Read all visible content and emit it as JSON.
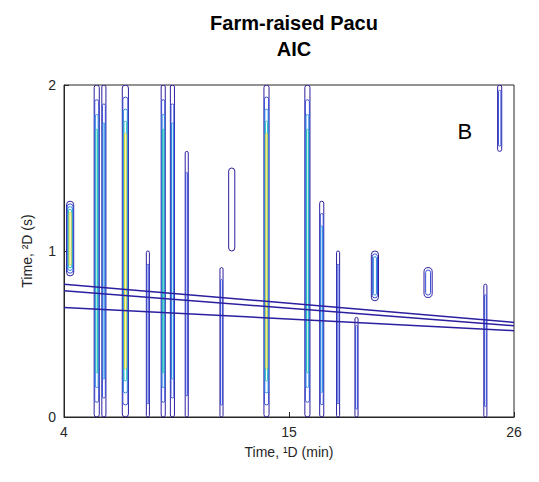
{
  "chart_data": {
    "type": "contour",
    "title": "Farm-raised Pacu",
    "subtitle": "AIC",
    "x_label": "Time, ¹D (min)",
    "y_label": "Time, ²D (s)",
    "annotations": [
      {
        "text": "B",
        "x": 23.6,
        "y": 1.72
      }
    ],
    "xlim": [
      4,
      26
    ],
    "xticks": [
      4,
      15,
      26
    ],
    "ylim": [
      0,
      2
    ],
    "yticks": [
      0,
      1,
      2
    ],
    "grid": false,
    "colors": [
      "#2b1fa0",
      "#3a4fd8",
      "#2f8fe0",
      "#2cc0b8",
      "#e8d83a"
    ],
    "peaks": [
      {
        "x": 4.3,
        "y": [
          0.85,
          1.3
        ],
        "width": 0.35,
        "level": 5
      },
      {
        "x": 5.6,
        "y": [
          0,
          2
        ],
        "width": 0.25,
        "level": 4
      },
      {
        "x": 5.95,
        "y": [
          0,
          2
        ],
        "width": 0.2,
        "level": 3
      },
      {
        "x": 7.0,
        "y": [
          0,
          2
        ],
        "width": 0.3,
        "level": 5
      },
      {
        "x": 8.1,
        "y": [
          0,
          1.0
        ],
        "width": 0.15,
        "level": 2
      },
      {
        "x": 8.85,
        "y": [
          0,
          2
        ],
        "width": 0.2,
        "level": 4
      },
      {
        "x": 9.3,
        "y": [
          0,
          2
        ],
        "width": 0.2,
        "level": 3
      },
      {
        "x": 10.0,
        "y": [
          0,
          1.6
        ],
        "width": 0.15,
        "level": 2
      },
      {
        "x": 11.7,
        "y": [
          0,
          0.9
        ],
        "width": 0.15,
        "level": 2
      },
      {
        "x": 12.2,
        "y": [
          1.0,
          1.5
        ],
        "width": 0.3,
        "level": 1
      },
      {
        "x": 13.9,
        "y": [
          0,
          2
        ],
        "width": 0.25,
        "level": 5
      },
      {
        "x": 15.9,
        "y": [
          0,
          2
        ],
        "width": 0.25,
        "level": 4
      },
      {
        "x": 16.6,
        "y": [
          0,
          1.3
        ],
        "width": 0.2,
        "level": 3
      },
      {
        "x": 17.4,
        "y": [
          0,
          1.0
        ],
        "width": 0.15,
        "level": 2
      },
      {
        "x": 18.3,
        "y": [
          0,
          0.6
        ],
        "width": 0.15,
        "level": 2
      },
      {
        "x": 19.2,
        "y": [
          0.7,
          1.0
        ],
        "width": 0.35,
        "level": 3
      },
      {
        "x": 21.8,
        "y": [
          0.72,
          0.9
        ],
        "width": 0.4,
        "level": 2
      },
      {
        "x": 24.6,
        "y": [
          0,
          0.8
        ],
        "width": 0.15,
        "level": 2
      },
      {
        "x": 25.3,
        "y": [
          1.6,
          2
        ],
        "width": 0.2,
        "level": 2
      }
    ],
    "bleed": [
      {
        "x": [
          4,
          26
        ],
        "y": [
          0.8,
          0.57
        ]
      },
      {
        "x": [
          4,
          26
        ],
        "y": [
          0.76,
          0.55
        ]
      },
      {
        "x": [
          4,
          26
        ],
        "y": [
          0.66,
          0.52
        ]
      }
    ]
  }
}
